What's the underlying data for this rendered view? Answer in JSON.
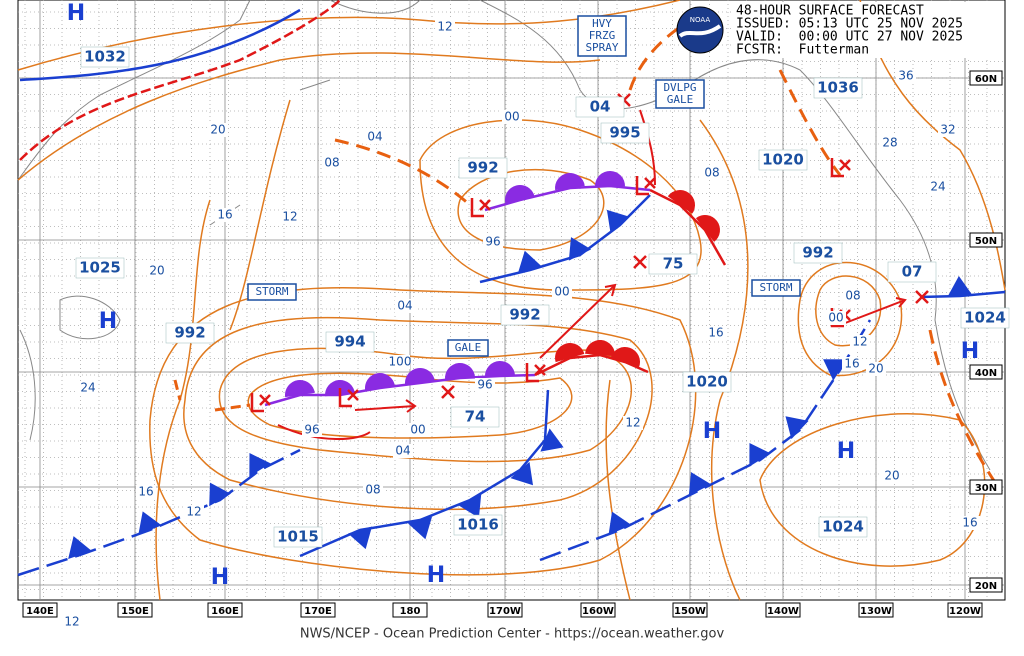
{
  "header": {
    "title": "48-HOUR SURFACE FORECAST",
    "issued": "ISSUED: 05:13 UTC 25 NOV 2025",
    "valid": "VALID:  00:00 UTC 27 NOV 2025",
    "forecaster": "FCSTR:  Futterman"
  },
  "logo": "NOAA",
  "longitude_labels": [
    "140E",
    "150E",
    "160E",
    "170E",
    "180",
    "170W",
    "160W",
    "150W",
    "140W",
    "130W",
    "120W"
  ],
  "latitude_labels": [
    "60N",
    "50N",
    "40N",
    "30N",
    "20N"
  ],
  "warnings": [
    {
      "lines": [
        "HVY",
        "FRZG",
        "SPRAY"
      ]
    },
    {
      "lines": [
        "DVLPG",
        "GALE"
      ]
    },
    {
      "lines": [
        "STORM"
      ]
    },
    {
      "lines": [
        "GALE"
      ]
    },
    {
      "lines": [
        "STORM"
      ]
    }
  ],
  "high_symbol": "H",
  "pressures": [
    "1032",
    "1025",
    "992",
    "994",
    "992",
    "992",
    "995",
    "04",
    "75",
    "74",
    "1036",
    "1020",
    "992",
    "07",
    "1024",
    "1020",
    "1016",
    "1015",
    "1024"
  ],
  "isobar_labels": [
    "12",
    "20",
    "16",
    "12",
    "04",
    "08",
    "00",
    "96",
    "08",
    "20",
    "24",
    "16",
    "12",
    "04",
    "100",
    "96",
    "96",
    "00",
    "04",
    "08",
    "00",
    "16",
    "12",
    "36",
    "32",
    "28",
    "24",
    "08",
    "00",
    "12",
    "16",
    "20",
    "20",
    "16",
    "12"
  ],
  "footer": "NWS/NCEP - Ocean Prediction Center - https://ocean.weather.gov"
}
